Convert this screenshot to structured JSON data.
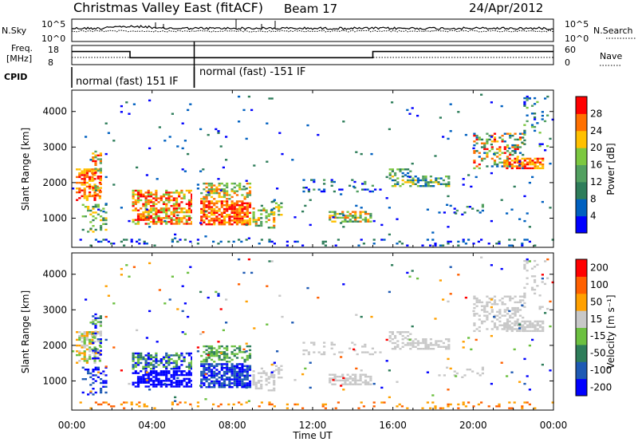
{
  "header": {
    "station": "Christmas Valley East (fitACF)",
    "beam": "Beam 17",
    "date": "24/Apr/2012"
  },
  "noise_panel": {
    "left_label": "N.Sky",
    "left_ticks": [
      "10^5",
      "10^0"
    ],
    "right_label": "N.Search",
    "right_ticks": [
      "10^5",
      "10^0"
    ]
  },
  "freq_panel": {
    "left_label_1": "Freq.",
    "left_label_2": "[MHz]",
    "left_ticks": [
      "18",
      "8"
    ],
    "right_label": "Nave",
    "right_ticks": [
      "60",
      "0"
    ]
  },
  "cpid": {
    "label": "CPID",
    "modes": [
      {
        "name": "normal (fast) 151 IF",
        "start_hour": 0,
        "end_hour": 6.1
      },
      {
        "name": "normal (fast) -151 IF",
        "start_hour": 6.1,
        "end_hour": 24
      }
    ]
  },
  "freq_steps": [
    {
      "start_hour": 0,
      "end_hour": 2.9,
      "freq_mhz": 15
    },
    {
      "start_hour": 2.9,
      "end_hour": 6.1,
      "freq_mhz": 11.5
    },
    {
      "start_hour": 6.1,
      "end_hour": 15.0,
      "freq_mhz": 11.5
    },
    {
      "start_hour": 15.0,
      "end_hour": 24,
      "freq_mhz": 15
    }
  ],
  "x_axis": {
    "label": "Time UT",
    "ticks": [
      "00:00",
      "04:00",
      "08:00",
      "12:00",
      "16:00",
      "20:00",
      "00:00"
    ]
  },
  "chart_data": [
    {
      "type": "heatmap",
      "name": "power",
      "ylabel": "Slant Range [km]",
      "yticks": [
        "1000",
        "2000",
        "3000",
        "4000"
      ],
      "xlim_hours": [
        0,
        24
      ],
      "ylim_km": [
        180,
        4600
      ],
      "colorbar": {
        "label": "Power [dB]",
        "ticks": [
          "4",
          "8",
          "12",
          "16",
          "20",
          "24",
          "28"
        ],
        "colors": [
          "#0000ff",
          "#0060c0",
          "#2e7d5a",
          "#52a060",
          "#7cc840",
          "#ffc000",
          "#ff7000",
          "#ff0000"
        ]
      }
    },
    {
      "type": "heatmap",
      "name": "velocity",
      "ylabel": "Slant Range [km]",
      "yticks": [
        "1000",
        "2000",
        "3000",
        "4000"
      ],
      "xlim_hours": [
        0,
        24
      ],
      "ylim_km": [
        180,
        4600
      ],
      "colorbar": {
        "label": "Velocity [m s⁻¹]",
        "ticks": [
          "200",
          "100",
          "50",
          "15",
          "-15",
          "-50",
          "-100",
          "-200"
        ],
        "colors": [
          "#0000ff",
          "#1e5ab4",
          "#2e7d5a",
          "#6cc040",
          "#c8c8c8",
          "#ffa000",
          "#ff6000",
          "#ff0000"
        ]
      }
    }
  ]
}
